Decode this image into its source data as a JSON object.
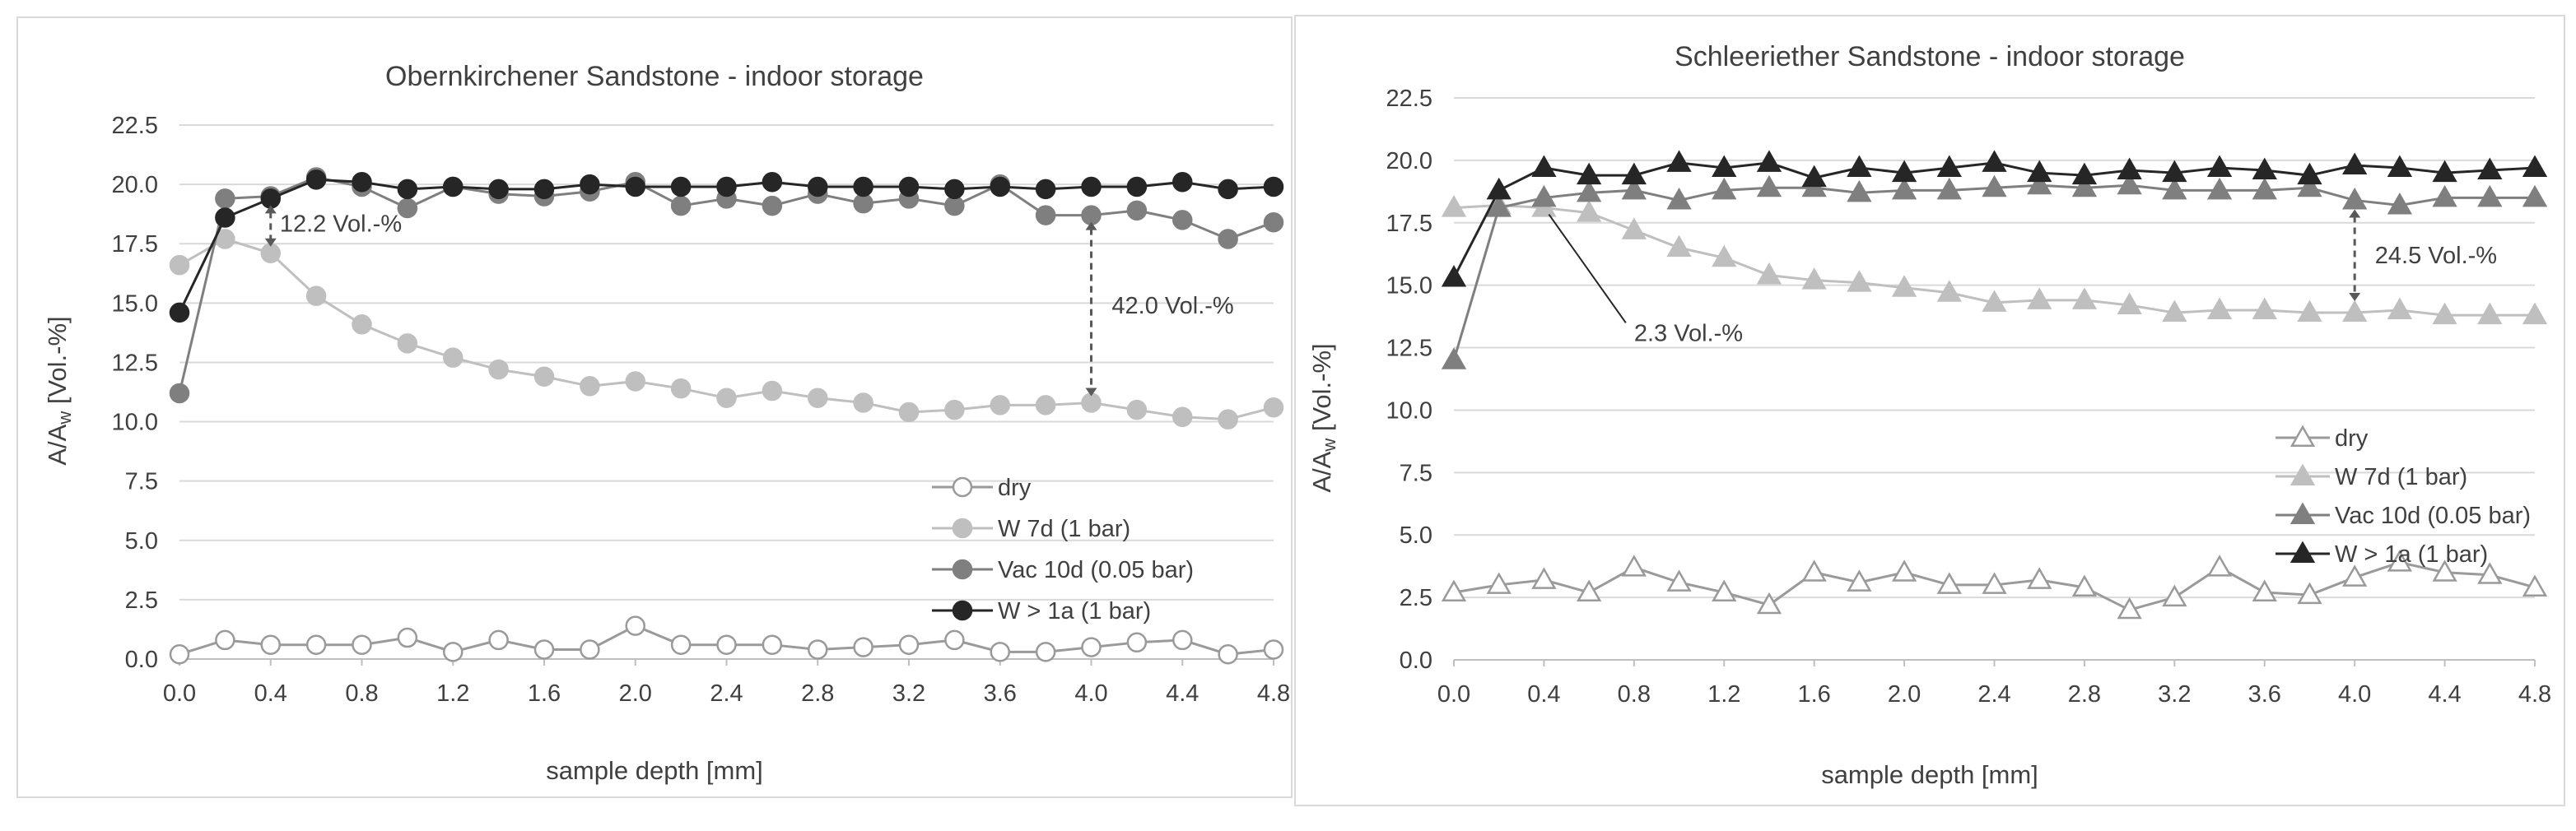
{
  "charts": [
    {
      "type": "line",
      "title": "Obernkirchener Sandstone - indoor storage",
      "xlabel": "sample depth [mm]",
      "ylabel_main": "A/A",
      "ylabel_sub": "w",
      "ylabel_tail": " [Vol.-%]",
      "xlim": [
        0,
        4.8
      ],
      "ylim": [
        0,
        22.5
      ],
      "x_ticks": [
        "0.0",
        "0.4",
        "0.8",
        "1.2",
        "1.6",
        "2.0",
        "2.4",
        "2.8",
        "3.2",
        "3.6",
        "4.0",
        "4.4",
        "4.8"
      ],
      "y_ticks": [
        "0.0",
        "2.5",
        "5.0",
        "7.5",
        "10.0",
        "12.5",
        "15.0",
        "17.5",
        "20.0",
        "22.5"
      ],
      "marker": "circle",
      "x": [
        0,
        0.2,
        0.4,
        0.6,
        0.8,
        1.0,
        1.2,
        1.4,
        1.6,
        1.8,
        2.0,
        2.2,
        2.4,
        2.6,
        2.8,
        3.0,
        3.2,
        3.4,
        3.6,
        3.8,
        4.0,
        4.2,
        4.4,
        4.6,
        4.8
      ],
      "series": [
        {
          "name": "dry",
          "color": "#9a9a9a",
          "filled": false,
          "values": [
            0.2,
            0.8,
            0.6,
            0.6,
            0.6,
            0.9,
            0.3,
            0.8,
            0.4,
            0.4,
            1.4,
            0.6,
            0.6,
            0.6,
            0.4,
            0.5,
            0.6,
            0.8,
            0.3,
            0.3,
            0.5,
            0.7,
            0.8,
            0.2,
            0.4
          ]
        },
        {
          "name": "W 7d (1 bar)",
          "color": "#bfbfbf",
          "filled": true,
          "values": [
            16.6,
            17.7,
            17.1,
            15.3,
            14.1,
            13.3,
            12.7,
            12.2,
            11.9,
            11.5,
            11.7,
            11.4,
            11.0,
            11.3,
            11.0,
            10.8,
            10.4,
            10.5,
            10.7,
            10.7,
            10.8,
            10.5,
            10.2,
            10.1,
            10.6
          ]
        },
        {
          "name": "Vac 10d (0.05 bar)",
          "color": "#7f7f7f",
          "filled": true,
          "values": [
            11.2,
            19.4,
            19.5,
            20.3,
            19.9,
            19.0,
            19.9,
            19.6,
            19.5,
            19.7,
            20.1,
            19.1,
            19.4,
            19.1,
            19.6,
            19.2,
            19.4,
            19.1,
            20.0,
            18.7,
            18.7,
            18.9,
            18.5,
            17.7,
            18.4
          ]
        },
        {
          "name": "W > 1a (1 bar)",
          "color": "#262626",
          "filled": true,
          "values": [
            14.6,
            18.6,
            19.4,
            20.2,
            20.1,
            19.8,
            19.9,
            19.8,
            19.8,
            20.0,
            19.9,
            19.9,
            19.9,
            20.1,
            19.9,
            19.9,
            19.9,
            19.8,
            19.9,
            19.8,
            19.9,
            19.9,
            20.1,
            19.8,
            19.9
          ]
        }
      ],
      "annotations": [
        {
          "text": "12.2 Vol.-%",
          "x": 0.4,
          "y_from": 19.4,
          "y_to": 17.1,
          "label_x": 0.44,
          "label_y": 18.35
        },
        {
          "text": "42.0 Vol.-%",
          "x": 4.0,
          "y_from": 18.7,
          "y_to": 10.8,
          "label_x": 4.09,
          "label_y": 14.9
        }
      ],
      "legend_position": "lower-right"
    },
    {
      "type": "line",
      "title": "Schleeriether Sandstone - indoor storage",
      "xlabel": "sample depth [mm]",
      "ylabel_main": "A/A",
      "ylabel_sub": "w",
      "ylabel_tail": " [Vol.-%]",
      "xlim": [
        0,
        4.8
      ],
      "ylim": [
        0,
        22.5
      ],
      "x_ticks": [
        "0.0",
        "0.4",
        "0.8",
        "1.2",
        "1.6",
        "2.0",
        "2.4",
        "2.8",
        "3.2",
        "3.6",
        "4.0",
        "4.4",
        "4.8"
      ],
      "y_ticks": [
        "0.0",
        "2.5",
        "5.0",
        "7.5",
        "10.0",
        "12.5",
        "15.0",
        "17.5",
        "20.0",
        "22.5"
      ],
      "marker": "triangle",
      "x": [
        0,
        0.2,
        0.4,
        0.6,
        0.8,
        1.0,
        1.2,
        1.4,
        1.6,
        1.8,
        2.0,
        2.2,
        2.4,
        2.6,
        2.8,
        3.0,
        3.2,
        3.4,
        3.6,
        3.8,
        4.0,
        4.2,
        4.4,
        4.6,
        4.8
      ],
      "series": [
        {
          "name": "dry",
          "color": "#9a9a9a",
          "filled": false,
          "values": [
            2.7,
            3.0,
            3.2,
            2.7,
            3.7,
            3.1,
            2.7,
            2.2,
            3.5,
            3.1,
            3.5,
            3.0,
            3.0,
            3.2,
            2.9,
            2.0,
            2.5,
            3.7,
            2.7,
            2.6,
            3.3,
            3.9,
            3.5,
            3.4,
            2.9
          ]
        },
        {
          "name": "W 7d (1 bar)",
          "color": "#bfbfbf",
          "filled": true,
          "values": [
            18.1,
            18.2,
            18.1,
            17.9,
            17.2,
            16.5,
            16.1,
            15.4,
            15.2,
            15.1,
            14.9,
            14.7,
            14.3,
            14.4,
            14.4,
            14.2,
            13.9,
            14.0,
            14.0,
            13.9,
            13.9,
            14.0,
            13.8,
            13.8,
            13.8
          ]
        },
        {
          "name": "Vac 10d (0.05 bar)",
          "color": "#7f7f7f",
          "filled": true,
          "values": [
            12.0,
            18.1,
            18.5,
            18.7,
            18.8,
            18.4,
            18.8,
            18.9,
            18.9,
            18.7,
            18.8,
            18.8,
            18.9,
            19.0,
            18.9,
            19.0,
            18.8,
            18.8,
            18.8,
            18.9,
            18.4,
            18.2,
            18.5,
            18.5,
            18.5
          ]
        },
        {
          "name": "W > 1a (1 bar)",
          "color": "#262626",
          "filled": true,
          "values": [
            15.3,
            18.8,
            19.7,
            19.4,
            19.4,
            19.9,
            19.7,
            19.9,
            19.3,
            19.7,
            19.5,
            19.7,
            19.9,
            19.5,
            19.4,
            19.6,
            19.5,
            19.7,
            19.6,
            19.4,
            19.8,
            19.7,
            19.5,
            19.6,
            19.7
          ]
        }
      ],
      "annotations": [
        {
          "text": "24.5 Vol.-%",
          "x": 4.0,
          "y_from": 18.3,
          "y_to": 14.1,
          "label_x": 4.09,
          "label_y": 16.2
        },
        {
          "text": "2.3 Vol.-%",
          "x": 0.4,
          "y_from": 18.1,
          "label_x": 0.8,
          "label_y": 13.1,
          "pointer": true
        }
      ],
      "legend_position": "lower-right"
    }
  ]
}
